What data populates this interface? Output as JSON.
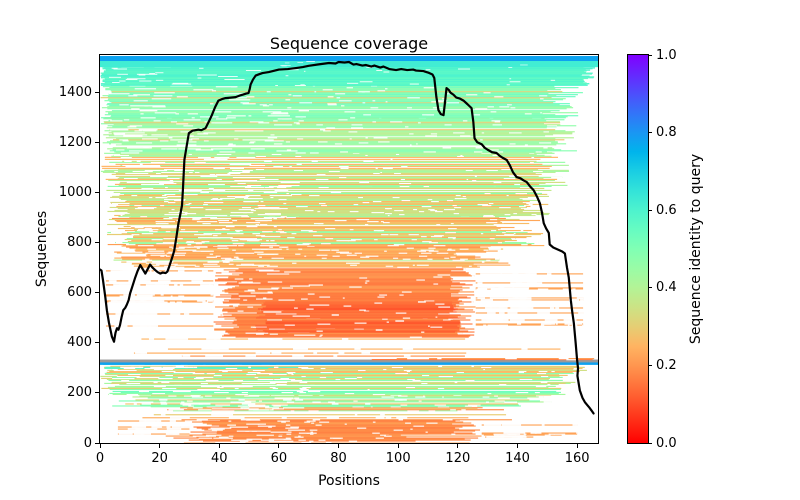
{
  "chart_data": {
    "type": "heatmap",
    "title": "Sequence coverage",
    "xlabel": "Positions",
    "ylabel": "Sequences",
    "xlim": [
      0,
      167
    ],
    "ylim": [
      0,
      1548
    ],
    "xticks": [
      0,
      20,
      40,
      60,
      80,
      100,
      120,
      140,
      160
    ],
    "yticks": [
      0,
      200,
      400,
      600,
      800,
      1000,
      1200,
      1400
    ],
    "grid": false,
    "colormap": "rainbow_r",
    "colorbar": {
      "label": "Sequence identity to query",
      "range": [
        0,
        1
      ],
      "tick_values": [
        0,
        0.2,
        0.4,
        0.6,
        0.8,
        1.0
      ],
      "tick_labels": [
        "0.0",
        "0.2",
        "0.4",
        "0.6",
        "0.8",
        "1.0"
      ],
      "position": "right"
    },
    "coverage_line": {
      "name": "per-position aligned sequence count",
      "color": "#000000",
      "width": 2.2,
      "points": [
        [
          0,
          692
        ],
        [
          0.5,
          688
        ],
        [
          1,
          650
        ],
        [
          1.8,
          580
        ],
        [
          2.3,
          530
        ],
        [
          3,
          480
        ],
        [
          4,
          424
        ],
        [
          4.7,
          404
        ],
        [
          5.2,
          440
        ],
        [
          5.7,
          458
        ],
        [
          6.2,
          452
        ],
        [
          6.7,
          470
        ],
        [
          7.2,
          500
        ],
        [
          7.8,
          530
        ],
        [
          8.5,
          540
        ],
        [
          9,
          552
        ],
        [
          9.6,
          570
        ],
        [
          10.1,
          597
        ],
        [
          11,
          630
        ],
        [
          11.8,
          660
        ],
        [
          12.6,
          686
        ],
        [
          13.5,
          710
        ],
        [
          14.3,
          694
        ],
        [
          15.2,
          676
        ],
        [
          16,
          694
        ],
        [
          16.8,
          712
        ],
        [
          17.6,
          700
        ],
        [
          18.5,
          690
        ],
        [
          19.3,
          682
        ],
        [
          20.2,
          676
        ],
        [
          21,
          680
        ],
        [
          22,
          678
        ],
        [
          22.6,
          684
        ],
        [
          23.1,
          700
        ],
        [
          23.6,
          718
        ],
        [
          24.2,
          740
        ],
        [
          24.9,
          768
        ],
        [
          25.6,
          820
        ],
        [
          26.3,
          876
        ],
        [
          27,
          916
        ],
        [
          27.5,
          948
        ],
        [
          27.8,
          1010
        ],
        [
          28.3,
          1130
        ],
        [
          29,
          1180
        ],
        [
          29.8,
          1236
        ],
        [
          31,
          1246
        ],
        [
          33,
          1250
        ],
        [
          34,
          1248
        ],
        [
          35.4,
          1256
        ],
        [
          36.4,
          1280
        ],
        [
          37.5,
          1308
        ],
        [
          38.6,
          1340
        ],
        [
          39.7,
          1366
        ],
        [
          40.9,
          1372
        ],
        [
          42.1,
          1376
        ],
        [
          43.8,
          1378
        ],
        [
          45.5,
          1380
        ],
        [
          46.8,
          1386
        ],
        [
          48,
          1390
        ],
        [
          49,
          1394
        ],
        [
          49.8,
          1396
        ],
        [
          50.2,
          1412
        ],
        [
          50.5,
          1430
        ],
        [
          51.3,
          1450
        ],
        [
          52.2,
          1466
        ],
        [
          53.5,
          1472
        ],
        [
          54.5,
          1476
        ],
        [
          56.6,
          1480
        ],
        [
          60,
          1490
        ],
        [
          63,
          1492
        ],
        [
          65.7,
          1496
        ],
        [
          68,
          1500
        ],
        [
          70,
          1505
        ],
        [
          73,
          1510
        ],
        [
          76.8,
          1516
        ],
        [
          79,
          1514
        ],
        [
          80,
          1520
        ],
        [
          82,
          1518
        ],
        [
          83.5,
          1520
        ],
        [
          85,
          1510
        ],
        [
          86,
          1512
        ],
        [
          88,
          1506
        ],
        [
          89.2,
          1508
        ],
        [
          91,
          1502
        ],
        [
          92,
          1506
        ],
        [
          94,
          1498
        ],
        [
          95,
          1502
        ],
        [
          97,
          1492
        ],
        [
          99.3,
          1488
        ],
        [
          101,
          1492
        ],
        [
          103,
          1488
        ],
        [
          105,
          1490
        ],
        [
          106,
          1486
        ],
        [
          108.4,
          1484
        ],
        [
          110,
          1478
        ],
        [
          111.5,
          1470
        ],
        [
          112.1,
          1456
        ],
        [
          112.8,
          1380
        ],
        [
          113.5,
          1328
        ],
        [
          114.3,
          1312
        ],
        [
          115.2,
          1308
        ],
        [
          115.7,
          1360
        ],
        [
          116.2,
          1416
        ],
        [
          117,
          1408
        ],
        [
          117.5,
          1398
        ],
        [
          118.5,
          1390
        ],
        [
          119.5,
          1378
        ],
        [
          120.7,
          1374
        ],
        [
          121.9,
          1366
        ],
        [
          123.2,
          1352
        ],
        [
          124.6,
          1336
        ],
        [
          125.2,
          1280
        ],
        [
          125.6,
          1216
        ],
        [
          126.5,
          1200
        ],
        [
          128,
          1192
        ],
        [
          129,
          1178
        ],
        [
          130,
          1170
        ],
        [
          131.5,
          1160
        ],
        [
          133,
          1157
        ],
        [
          134,
          1146
        ],
        [
          135,
          1138
        ],
        [
          136.4,
          1129
        ],
        [
          137.4,
          1109
        ],
        [
          138.5,
          1080
        ],
        [
          139.7,
          1061
        ],
        [
          141,
          1056
        ],
        [
          142,
          1048
        ],
        [
          143.1,
          1041
        ],
        [
          144.2,
          1024
        ],
        [
          145.4,
          1009
        ],
        [
          146.5,
          984
        ],
        [
          147.5,
          957
        ],
        [
          148.2,
          920
        ],
        [
          148.8,
          877
        ],
        [
          149.6,
          856
        ],
        [
          150.5,
          838
        ],
        [
          150.8,
          792
        ],
        [
          152,
          780
        ],
        [
          153.5,
          772
        ],
        [
          155,
          764
        ],
        [
          155.9,
          756
        ],
        [
          156.6,
          700
        ],
        [
          157.2,
          660
        ],
        [
          157.9,
          568
        ],
        [
          158.4,
          520
        ],
        [
          158.9,
          478
        ],
        [
          159.5,
          400
        ],
        [
          160,
          330
        ],
        [
          160.3,
          298
        ],
        [
          160.1,
          268
        ],
        [
          160.9,
          210
        ],
        [
          161.8,
          180
        ],
        [
          162.6,
          163
        ],
        [
          163.5,
          150
        ],
        [
          164,
          143
        ],
        [
          164.8,
          130
        ],
        [
          165.5,
          118
        ]
      ]
    },
    "seq_bands": [
      {
        "seq": [
          2,
          38
        ],
        "x": [
          22,
          128
        ],
        "id": 0.2,
        "d": 0.9,
        "gap": 0.25,
        "rs": 14,
        "re": 28,
        "idj": 0.03
      },
      {
        "seq": [
          2,
          38
        ],
        "x": [
          128,
          158
        ],
        "id": 0.22,
        "d": 0.3,
        "gap": 0.35,
        "rs": 2,
        "re": 20
      },
      {
        "seq": [
          38,
          95
        ],
        "x": [
          30,
          128
        ],
        "id": 0.19,
        "d": 0.95,
        "gap": 0.15,
        "rs": 10,
        "re": 10,
        "idj": 0.03
      },
      {
        "seq": [
          38,
          95
        ],
        "x": [
          6,
          30
        ],
        "id": 0.22,
        "d": 0.3,
        "gap": 0.5
      },
      {
        "seq": [
          38,
          95
        ],
        "x": [
          128,
          160
        ],
        "id": 0.22,
        "d": 0.22,
        "gap": 0.45
      },
      {
        "seq": [
          95,
          150
        ],
        "x": [
          14,
          140
        ],
        "id": 0.25,
        "d": 0.85,
        "gap": 0.4,
        "rs": 18,
        "re": 22,
        "idj": 0.08,
        "mix_p": 0.2,
        "mix_id": 0.45
      },
      {
        "seq": [
          150,
          196
        ],
        "x": [
          4,
          152
        ],
        "id": 0.36,
        "d": 0.85,
        "gap": 0.4,
        "rs": 14,
        "re": 16,
        "idj": 0.1,
        "mix_p": 0.25,
        "mix_id": 0.5
      },
      {
        "seq": [
          196,
          240
        ],
        "x": [
          0,
          158
        ],
        "id": 0.47,
        "d": 0.85,
        "gap": 0.35,
        "rs": 8,
        "re": 12,
        "idj": 0.07,
        "mix_p": 0.15,
        "mix_id": 0.3
      },
      {
        "seq": [
          240,
          288
        ],
        "x": [
          0,
          160
        ],
        "id": 0.32,
        "d": 0.88,
        "gap": 0.3,
        "rs": 6,
        "re": 10,
        "idj": 0.06,
        "mix_p": 0.12,
        "mix_id": 0.48
      },
      {
        "seq": [
          288,
          314
        ],
        "x": [
          0,
          164
        ],
        "id": 0.3,
        "d": 0.85,
        "gap": 0.25,
        "rs": 4,
        "re": 6,
        "idj": 0.05
      },
      {
        "seq": [
          300,
          316
        ],
        "x": [
          0,
          78
        ],
        "id": 0.58,
        "d": 0.45,
        "gap": 0.5,
        "rs": 2,
        "re": 30
      },
      {
        "seq": [
          318,
          324
        ],
        "x": [
          0,
          167
        ],
        "id": 0.78,
        "d": 1,
        "gap": 0,
        "step": 2,
        "h": 1.6
      },
      {
        "seq": [
          327,
          333
        ],
        "x": [
          0,
          167
        ],
        "color": "#9a9a9a",
        "d": 1,
        "gap": 0,
        "step": 2,
        "h": 1.4
      },
      {
        "seq": [
          335,
          349
        ],
        "x": [
          80,
          167
        ],
        "id": 0.16,
        "d": 0.85,
        "gap": 0.15,
        "rs": 24,
        "re": 2,
        "idj": 0.05
      },
      {
        "seq": [
          349,
          425
        ],
        "x": [
          10,
          158
        ],
        "id": 0.22,
        "d": 0.32,
        "gap": 0.55,
        "rs": 30,
        "re": 38,
        "idj": 0.04
      },
      {
        "seq": [
          425,
          700
        ],
        "x": [
          38,
          126
        ],
        "id": 0.18,
        "d": 0.97,
        "gap": 0.08,
        "rs": 9,
        "re": 9,
        "idj": 0.03
      },
      {
        "seq": [
          445,
          565
        ],
        "x": [
          52,
          121
        ],
        "id": 0.13,
        "d": 0.9,
        "gap": 0.05,
        "rs": 4,
        "re": 4,
        "idj": 0.03,
        "step": 4
      },
      {
        "seq": [
          425,
          700
        ],
        "x": [
          2,
          38
        ],
        "id": 0.22,
        "d": 0.2,
        "gap": 0.55
      },
      {
        "seq": [
          425,
          700
        ],
        "x": [
          126,
          162
        ],
        "id": 0.22,
        "d": 0.16,
        "gap": 0.5
      },
      {
        "seq": [
          700,
          790
        ],
        "x": [
          4,
          138
        ],
        "id": 0.23,
        "d": 0.85,
        "gap": 0.32,
        "rs": 12,
        "re": 20,
        "idj": 0.05,
        "mix_p": 0.1,
        "mix_id": 0.4
      },
      {
        "seq": [
          790,
          910
        ],
        "x": [
          2,
          150
        ],
        "id": 0.27,
        "d": 0.87,
        "gap": 0.32,
        "rs": 10,
        "re": 18,
        "idj": 0.07,
        "mix_p": 0.12,
        "mix_id": 0.45
      },
      {
        "seq": [
          910,
          1030
        ],
        "x": [
          2,
          154
        ],
        "id": 0.32,
        "d": 0.88,
        "gap": 0.3,
        "rs": 8,
        "re": 14,
        "idj": 0.08,
        "mix_p": 0.15,
        "mix_id": 0.48
      },
      {
        "seq": [
          1030,
          1160
        ],
        "x": [
          0,
          158
        ],
        "id": 0.38,
        "d": 0.88,
        "gap": 0.28,
        "rs": 8,
        "re": 12,
        "idj": 0.08,
        "mix_p": 0.12,
        "mix_id": 0.25
      },
      {
        "seq": [
          1160,
          1300
        ],
        "x": [
          0,
          160
        ],
        "id": 0.44,
        "d": 0.9,
        "gap": 0.25,
        "rs": 6,
        "re": 12,
        "idj": 0.06,
        "mix_p": 0.12,
        "mix_id": 0.28
      },
      {
        "seq": [
          1300,
          1430
        ],
        "x": [
          0,
          162
        ],
        "id": 0.5,
        "d": 0.93,
        "gap": 0.2,
        "rs": 4,
        "re": 14,
        "idj": 0.05,
        "mix_p": 0.1,
        "mix_id": 0.3
      },
      {
        "seq": [
          1430,
          1505
        ],
        "x": [
          0,
          166
        ],
        "id": 0.58,
        "d": 1,
        "gap": 0.1,
        "rs": 2,
        "re": 6,
        "idj": 0.03,
        "step": 3,
        "h": 1.3
      },
      {
        "seq": [
          1505,
          1528
        ],
        "x": [
          0,
          167
        ],
        "id": 0.62,
        "d": 1,
        "gap": 0.03,
        "step": 2,
        "h": 1.4
      },
      {
        "seq": [
          1530,
          1545
        ],
        "x": [
          0,
          167
        ],
        "id": 0.78,
        "d": 1,
        "gap": 0,
        "step": 2,
        "h": 1.5
      }
    ]
  }
}
